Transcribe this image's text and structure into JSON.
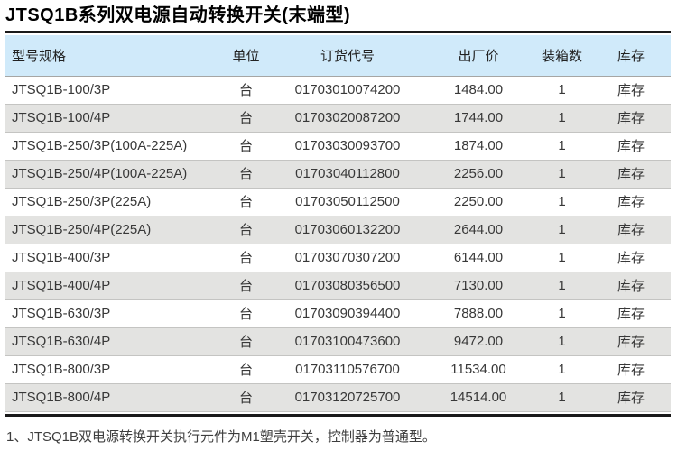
{
  "page": {
    "title": "JTSQ1B系列双电源自动转换开关(末端型)",
    "footnote": "1、JTSQ1B双电源转换开关执行元件为M1塑壳开关，控制器为普通型。"
  },
  "table": {
    "columns": [
      {
        "key": "model",
        "label": "型号规格"
      },
      {
        "key": "unit",
        "label": "单位"
      },
      {
        "key": "code",
        "label": "订货代号"
      },
      {
        "key": "price",
        "label": "出厂价"
      },
      {
        "key": "qty",
        "label": "装箱数"
      },
      {
        "key": "stock",
        "label": "库存"
      }
    ],
    "rows": [
      {
        "model": "JTSQ1B-100/3P",
        "unit": "台",
        "code": "01703010074200",
        "price": "1484.00",
        "qty": "1",
        "stock": "库存"
      },
      {
        "model": "JTSQ1B-100/4P",
        "unit": "台",
        "code": "01703020087200",
        "price": "1744.00",
        "qty": "1",
        "stock": "库存"
      },
      {
        "model": "JTSQ1B-250/3P(100A-225A)",
        "unit": "台",
        "code": "01703030093700",
        "price": "1874.00",
        "qty": "1",
        "stock": "库存"
      },
      {
        "model": "JTSQ1B-250/4P(100A-225A)",
        "unit": "台",
        "code": "01703040112800",
        "price": "2256.00",
        "qty": "1",
        "stock": "库存"
      },
      {
        "model": "JTSQ1B-250/3P(225A)",
        "unit": "台",
        "code": "01703050112500",
        "price": "2250.00",
        "qty": "1",
        "stock": "库存"
      },
      {
        "model": "JTSQ1B-250/4P(225A)",
        "unit": "台",
        "code": "01703060132200",
        "price": "2644.00",
        "qty": "1",
        "stock": "库存"
      },
      {
        "model": "JTSQ1B-400/3P",
        "unit": "台",
        "code": "01703070307200",
        "price": "6144.00",
        "qty": "1",
        "stock": "库存"
      },
      {
        "model": "JTSQ1B-400/4P",
        "unit": "台",
        "code": "01703080356500",
        "price": "7130.00",
        "qty": "1",
        "stock": "库存"
      },
      {
        "model": "JTSQ1B-630/3P",
        "unit": "台",
        "code": "01703090394400",
        "price": "7888.00",
        "qty": "1",
        "stock": "库存"
      },
      {
        "model": "JTSQ1B-630/4P",
        "unit": "台",
        "code": "01703100473600",
        "price": "9472.00",
        "qty": "1",
        "stock": "库存"
      },
      {
        "model": "JTSQ1B-800/3P",
        "unit": "台",
        "code": "01703110576700",
        "price": "11534.00",
        "qty": "1",
        "stock": "库存"
      },
      {
        "model": "JTSQ1B-800/4P",
        "unit": "台",
        "code": "01703120725700",
        "price": "14514.00",
        "qty": "1",
        "stock": "库存"
      }
    ]
  },
  "colors": {
    "header_bg": "#d0eafa",
    "alt_row_bg": "#e3e3e1",
    "rule": "#1a1a1a"
  }
}
